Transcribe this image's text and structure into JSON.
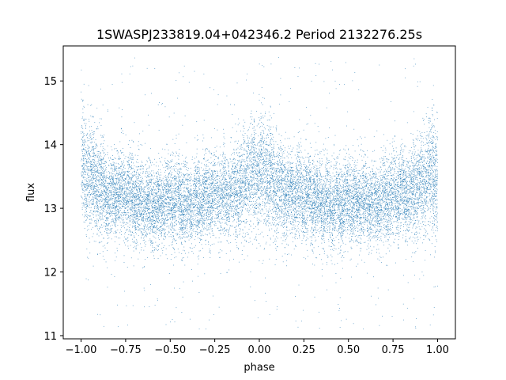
{
  "chart_data": {
    "type": "scatter",
    "title": "1SWASPJ233819.04+042346.2 Period 2132276.25s",
    "xlabel": "phase",
    "ylabel": "flux",
    "xlim": [
      -1.1,
      1.1
    ],
    "ylim": [
      10.95,
      15.55
    ],
    "xticks": [
      -1.0,
      -0.75,
      -0.5,
      -0.25,
      0.0,
      0.25,
      0.5,
      0.75,
      1.0
    ],
    "xtick_labels": [
      "−1.00",
      "−0.75",
      "−0.50",
      "−0.25",
      "0.00",
      "0.25",
      "0.50",
      "0.75",
      "1.00"
    ],
    "yticks": [
      11,
      12,
      13,
      14,
      15
    ],
    "ytick_labels": [
      "11",
      "12",
      "13",
      "14",
      "15"
    ],
    "grid": false,
    "marker_color": "#1f77b4",
    "phase_range": [
      -1.0,
      1.0
    ],
    "flux_profile": {
      "phase": [
        0.0,
        0.05,
        0.1,
        0.15,
        0.2,
        0.25,
        0.3,
        0.35,
        0.4,
        0.45,
        0.5
      ],
      "median_flux": [
        13.55,
        13.5,
        13.35,
        13.2,
        13.25,
        13.2,
        13.15,
        13.1,
        13.05,
        13.05,
        13.15
      ],
      "spread": [
        0.55,
        0.5,
        0.45,
        0.4,
        0.4,
        0.4,
        0.4,
        0.38,
        0.38,
        0.38,
        0.4
      ]
    },
    "n_points": 16000
  }
}
